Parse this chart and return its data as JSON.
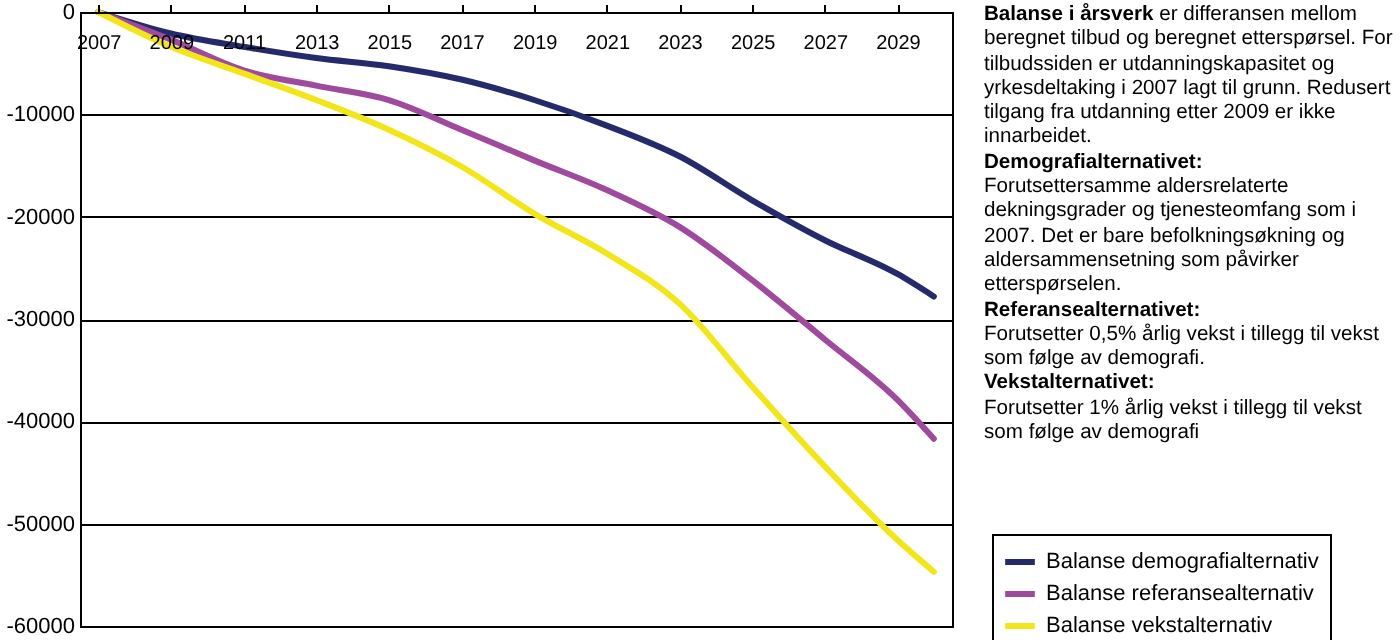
{
  "chart_data": {
    "type": "line",
    "x": [
      2007,
      2009,
      2011,
      2013,
      2015,
      2017,
      2019,
      2021,
      2023,
      2025,
      2027,
      2029,
      2030
    ],
    "series": [
      {
        "name": "Balanse demografialternativ",
        "color": "#252a6b",
        "values": [
          0,
          -2100,
          -3400,
          -4500,
          -5300,
          -6600,
          -8600,
          -11100,
          -14100,
          -18400,
          -22300,
          -25600,
          -27800
        ]
      },
      {
        "name": "Balanse referansealternativ",
        "color": "#a04a9e",
        "values": [
          0,
          -2700,
          -5700,
          -7200,
          -8600,
          -11500,
          -14500,
          -17400,
          -21000,
          -26200,
          -32000,
          -37900,
          -41700
        ]
      },
      {
        "name": "Balanse vekstalternativ",
        "color": "#f2e61a",
        "values": [
          0,
          -3400,
          -6000,
          -8600,
          -11500,
          -15100,
          -19700,
          -23600,
          -28500,
          -36600,
          -44400,
          -51600,
          -54700
        ]
      }
    ],
    "xlim": [
      2006.5,
      2030.5
    ],
    "xticks": [
      2007,
      2009,
      2011,
      2013,
      2015,
      2017,
      2019,
      2021,
      2023,
      2025,
      2027,
      2029
    ],
    "ylim": [
      -60000,
      0
    ],
    "yticks": [
      0,
      -10000,
      -20000,
      -30000,
      -40000,
      -50000,
      -60000
    ],
    "grid": "y",
    "legend": "bottom right",
    "marker": "none",
    "line_style": "solid",
    "annotations": [
      "Balanse i årsverk",
      "er differansen mellom beregnet tilbud og beregnet etterspørsel. For tilbudssiden er utdanningskapasitet og yrkesdeltaking i 2007 lagt til grunn. Redusert tilgang fra utdanning etter 2009 er ikke innarbeidet.",
      "Demografialternativet:",
      "Forutsettersamme aldersrelaterte dekningsgrader og tjenesteomfang som i 2007. Det er bare befolkningsøkning og aldersammensetning som påvirker etterspørselen.",
      "Referansealternativet:",
      "Forutsetter 0,5% årlig vekst i tillegg til vekst som følge av demografi.",
      "Vekstalternativet:",
      "Forutsetter 1% årlig vekst i tillegg til vekst som følge av demografi"
    ]
  }
}
